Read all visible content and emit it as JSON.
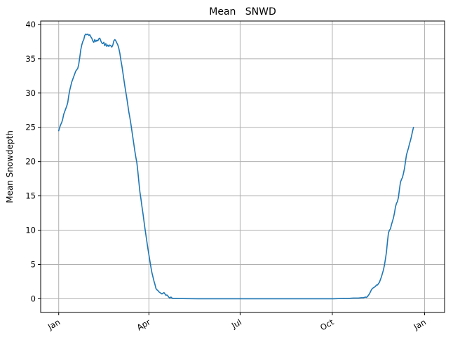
{
  "chart_data": {
    "type": "line",
    "title": "Mean   SNWD",
    "xlabel": "",
    "ylabel": "Mean Snowdepth",
    "x_ticks": [
      {
        "label": "Jan",
        "day": 1
      },
      {
        "label": "Apr",
        "day": 91
      },
      {
        "label": "Jul",
        "day": 182
      },
      {
        "label": "Oct",
        "day": 274
      },
      {
        "label": "Jan",
        "day": 366
      }
    ],
    "y_ticks": [
      0,
      5,
      10,
      15,
      20,
      25,
      30,
      35,
      40
    ],
    "ylim": [
      -2,
      40.5
    ],
    "xlim": [
      -17,
      386
    ],
    "grid": true,
    "colors": {
      "line": "#1f77b4",
      "grid": "#b0b0b0",
      "axes": "#000000"
    },
    "series": [
      {
        "values": [
          [
            1,
            24.5
          ],
          [
            2,
            25.0
          ],
          [
            3,
            25.4
          ],
          [
            4,
            25.7
          ],
          [
            5,
            26.2
          ],
          [
            6,
            26.9
          ],
          [
            7,
            27.3
          ],
          [
            8,
            27.7
          ],
          [
            9,
            28.1
          ],
          [
            10,
            28.6
          ],
          [
            11,
            29.6
          ],
          [
            12,
            30.4
          ],
          [
            13,
            31.0
          ],
          [
            14,
            31.6
          ],
          [
            15,
            32.0
          ],
          [
            16,
            32.4
          ],
          [
            17,
            32.8
          ],
          [
            18,
            33.2
          ],
          [
            19,
            33.4
          ],
          [
            20,
            33.6
          ],
          [
            21,
            34.2
          ],
          [
            22,
            35.2
          ],
          [
            23,
            36.3
          ],
          [
            24,
            37.0
          ],
          [
            25,
            37.5
          ],
          [
            26,
            37.8
          ],
          [
            27,
            38.4
          ],
          [
            28,
            38.6
          ],
          [
            29,
            38.5
          ],
          [
            30,
            38.6
          ],
          [
            31,
            38.4
          ],
          [
            32,
            38.5
          ],
          [
            33,
            38.2
          ],
          [
            34,
            38.0
          ],
          [
            35,
            37.6
          ],
          [
            36,
            37.4
          ],
          [
            37,
            37.8
          ],
          [
            38,
            37.5
          ],
          [
            39,
            37.7
          ],
          [
            40,
            37.6
          ],
          [
            41,
            37.9
          ],
          [
            42,
            38.0
          ],
          [
            43,
            37.6
          ],
          [
            44,
            37.3
          ],
          [
            45,
            37.2
          ],
          [
            46,
            37.4
          ],
          [
            47,
            36.9
          ],
          [
            48,
            37.2
          ],
          [
            49,
            36.8
          ],
          [
            50,
            37.0
          ],
          [
            51,
            36.8
          ],
          [
            52,
            37.0
          ],
          [
            53,
            36.9
          ],
          [
            54,
            36.7
          ],
          [
            55,
            37.0
          ],
          [
            56,
            37.6
          ],
          [
            57,
            37.8
          ],
          [
            58,
            37.6
          ],
          [
            59,
            37.3
          ],
          [
            60,
            37.0
          ],
          [
            61,
            36.5
          ],
          [
            62,
            35.8
          ],
          [
            63,
            34.8
          ],
          [
            64,
            34.0
          ],
          [
            65,
            33.0
          ],
          [
            66,
            32.0
          ],
          [
            67,
            31.0
          ],
          [
            68,
            30.1
          ],
          [
            69,
            29.2
          ],
          [
            70,
            28.2
          ],
          [
            71,
            27.2
          ],
          [
            72,
            26.4
          ],
          [
            73,
            25.5
          ],
          [
            74,
            24.5
          ],
          [
            75,
            23.5
          ],
          [
            76,
            22.5
          ],
          [
            77,
            21.5
          ],
          [
            78,
            20.6
          ],
          [
            79,
            19.8
          ],
          [
            80,
            18.5
          ],
          [
            81,
            17.0
          ],
          [
            82,
            15.6
          ],
          [
            83,
            14.6
          ],
          [
            84,
            13.5
          ],
          [
            85,
            12.5
          ],
          [
            86,
            11.4
          ],
          [
            87,
            10.3
          ],
          [
            88,
            9.3
          ],
          [
            89,
            8.3
          ],
          [
            90,
            7.3
          ],
          [
            91,
            6.4
          ],
          [
            92,
            5.5
          ],
          [
            93,
            4.6
          ],
          [
            94,
            3.8
          ],
          [
            95,
            3.2
          ],
          [
            96,
            2.6
          ],
          [
            97,
            2.1
          ],
          [
            98,
            1.5
          ],
          [
            99,
            1.3
          ],
          [
            100,
            1.2
          ],
          [
            101,
            1.0
          ],
          [
            102,
            0.9
          ],
          [
            103,
            0.8
          ],
          [
            104,
            0.7
          ],
          [
            105,
            0.8
          ],
          [
            106,
            0.9
          ],
          [
            107,
            0.7
          ],
          [
            108,
            0.5
          ],
          [
            109,
            0.55
          ],
          [
            110,
            0.4
          ],
          [
            111,
            0.2
          ],
          [
            112,
            0.1
          ],
          [
            113,
            0.25
          ],
          [
            114,
            0.1
          ],
          [
            115,
            0.05
          ],
          [
            118,
            0.05
          ],
          [
            125,
            0.02
          ],
          [
            140,
            0.0
          ],
          [
            160,
            0.0
          ],
          [
            180,
            0.0
          ],
          [
            200,
            0.0
          ],
          [
            220,
            0.0
          ],
          [
            240,
            0.0
          ],
          [
            260,
            0.0
          ],
          [
            275,
            0.0
          ],
          [
            285,
            0.05
          ],
          [
            290,
            0.05
          ],
          [
            295,
            0.1
          ],
          [
            300,
            0.1
          ],
          [
            303,
            0.15
          ],
          [
            305,
            0.15
          ],
          [
            307,
            0.25
          ],
          [
            308,
            0.2
          ],
          [
            309,
            0.3
          ],
          [
            310,
            0.5
          ],
          [
            311,
            0.7
          ],
          [
            312,
            1.0
          ],
          [
            313,
            1.3
          ],
          [
            314,
            1.5
          ],
          [
            315,
            1.6
          ],
          [
            316,
            1.7
          ],
          [
            317,
            1.8
          ],
          [
            318,
            2.0
          ],
          [
            319,
            2.0
          ],
          [
            320,
            2.2
          ],
          [
            321,
            2.4
          ],
          [
            322,
            2.8
          ],
          [
            323,
            3.2
          ],
          [
            324,
            3.7
          ],
          [
            325,
            4.2
          ],
          [
            326,
            4.9
          ],
          [
            327,
            5.8
          ],
          [
            328,
            6.8
          ],
          [
            329,
            8.3
          ],
          [
            330,
            9.6
          ],
          [
            331,
            10.0
          ],
          [
            332,
            10.2
          ],
          [
            333,
            10.8
          ],
          [
            334,
            11.3
          ],
          [
            335,
            11.8
          ],
          [
            336,
            12.5
          ],
          [
            337,
            13.4
          ],
          [
            338,
            13.9
          ],
          [
            339,
            14.2
          ],
          [
            340,
            14.8
          ],
          [
            341,
            16.0
          ],
          [
            342,
            17.0
          ],
          [
            343,
            17.4
          ],
          [
            344,
            17.7
          ],
          [
            345,
            18.3
          ],
          [
            346,
            19.0
          ],
          [
            347,
            20.0
          ],
          [
            348,
            21.0
          ],
          [
            349,
            21.5
          ],
          [
            350,
            22.0
          ],
          [
            351,
            22.6
          ],
          [
            352,
            23.1
          ],
          [
            353,
            23.7
          ],
          [
            354,
            24.4
          ],
          [
            355,
            25.0
          ]
        ]
      }
    ]
  }
}
